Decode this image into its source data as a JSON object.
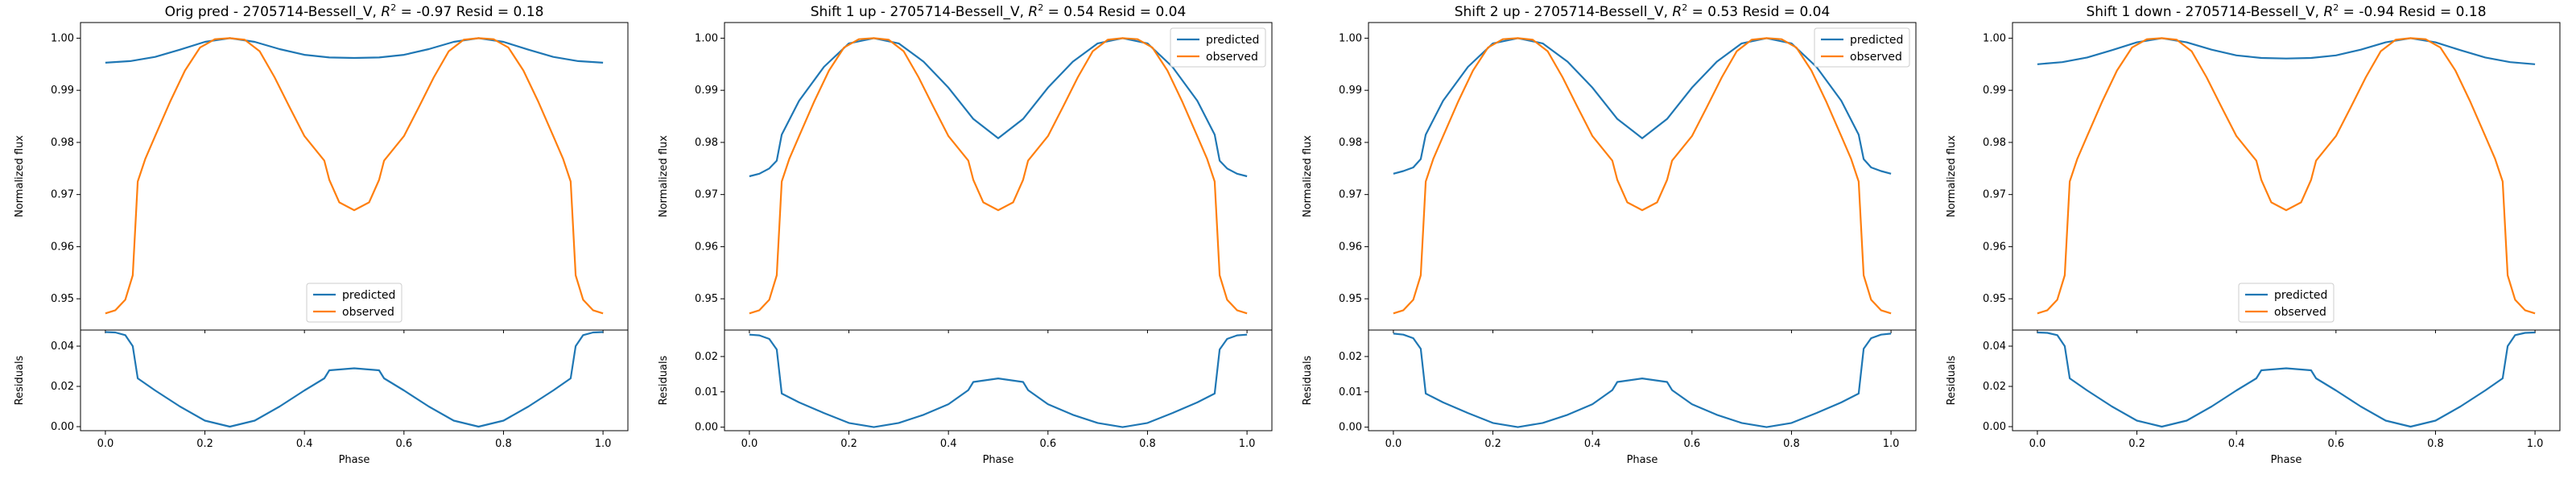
{
  "chart_data": [
    {
      "type": "line",
      "title": "Orig pred - 2705714-Bessell_V, $R^2$ = -0.97 Resid = 0.18",
      "title_parts": {
        "prefix": "Orig pred - 2705714-Bessell_V, ",
        "r2_symbol": "R",
        "r2_exp": "2",
        "suffix": " = -0.97 Resid = 0.18"
      },
      "xlabel": "Phase",
      "ylabel": "Normalized flux",
      "resid_ylabel": "Residuals",
      "xlim": [
        -0.05,
        1.05
      ],
      "ylim": [
        0.944,
        1.003
      ],
      "resid_ylim": [
        -0.002,
        0.048
      ],
      "xticks": [
        "0.0",
        "0.2",
        "0.4",
        "0.6",
        "0.8",
        "1.0"
      ],
      "yticks": [
        "0.95",
        "0.96",
        "0.97",
        "0.98",
        "0.99",
        "1.00"
      ],
      "resid_yticks": [
        "0.00",
        "0.02",
        "0.04"
      ],
      "legend": {
        "placement": "lower-center",
        "entries": [
          "predicted",
          "observed"
        ]
      },
      "series": [
        {
          "name": "predicted",
          "color": "#1f77b4",
          "x": [
            0,
            0.05,
            0.1,
            0.15,
            0.2,
            0.25,
            0.3,
            0.35,
            0.4,
            0.45,
            0.5,
            0.55,
            0.6,
            0.65,
            0.7,
            0.75,
            0.8,
            0.85,
            0.9,
            0.95,
            1.0
          ],
          "y": [
            0.9953,
            0.9956,
            0.9964,
            0.9978,
            0.9993,
            1.0,
            0.9993,
            0.9979,
            0.9968,
            0.9963,
            0.9962,
            0.9963,
            0.9968,
            0.9979,
            0.9993,
            1.0,
            0.9993,
            0.9978,
            0.9964,
            0.9956,
            0.9953
          ]
        },
        {
          "name": "observed",
          "color": "#ff7f0e",
          "x": [
            0,
            0.02,
            0.04,
            0.055,
            0.065,
            0.08,
            0.1,
            0.13,
            0.16,
            0.19,
            0.22,
            0.25,
            0.28,
            0.31,
            0.34,
            0.37,
            0.4,
            0.44,
            0.45,
            0.47,
            0.5,
            0.53,
            0.55,
            0.56,
            0.6,
            0.63,
            0.66,
            0.69,
            0.72,
            0.75,
            0.78,
            0.81,
            0.84,
            0.87,
            0.9,
            0.92,
            0.935,
            0.945,
            0.96,
            0.98,
            1.0
          ],
          "y": [
            0.9472,
            0.9478,
            0.9498,
            0.9545,
            0.9725,
            0.9768,
            0.9812,
            0.9878,
            0.9938,
            0.9982,
            0.9998,
            1.0,
            0.9997,
            0.9975,
            0.9925,
            0.9868,
            0.9812,
            0.9765,
            0.9728,
            0.9685,
            0.967,
            0.9685,
            0.9728,
            0.9765,
            0.9812,
            0.9868,
            0.9925,
            0.9975,
            0.9997,
            1.0,
            0.9998,
            0.9982,
            0.9938,
            0.9878,
            0.9812,
            0.9768,
            0.9725,
            0.9545,
            0.9498,
            0.9478,
            0.9472
          ]
        }
      ],
      "residuals": {
        "color": "#1f77b4",
        "x": [
          0,
          0.02,
          0.04,
          0.055,
          0.065,
          0.1,
          0.15,
          0.2,
          0.25,
          0.3,
          0.35,
          0.4,
          0.44,
          0.45,
          0.5,
          0.55,
          0.56,
          0.6,
          0.65,
          0.7,
          0.75,
          0.8,
          0.85,
          0.9,
          0.935,
          0.945,
          0.96,
          0.98,
          1.0
        ],
        "y": [
          0.047,
          0.0468,
          0.0455,
          0.04,
          0.024,
          0.018,
          0.01,
          0.003,
          0.0,
          0.003,
          0.01,
          0.018,
          0.024,
          0.028,
          0.029,
          0.028,
          0.024,
          0.018,
          0.01,
          0.003,
          0.0,
          0.003,
          0.01,
          0.018,
          0.024,
          0.04,
          0.0455,
          0.0468,
          0.047
        ]
      }
    },
    {
      "type": "line",
      "title": "Shift 1 up - 2705714-Bessell_V, $R^2$ = 0.54 Resid = 0.04",
      "title_parts": {
        "prefix": "Shift 1 up - 2705714-Bessell_V, ",
        "r2_symbol": "R",
        "r2_exp": "2",
        "suffix": " = 0.54 Resid = 0.04"
      },
      "xlabel": "Phase",
      "ylabel": "Normalized flux",
      "resid_ylabel": "Residuals",
      "xlim": [
        -0.05,
        1.05
      ],
      "ylim": [
        0.944,
        1.003
      ],
      "resid_ylim": [
        -0.001,
        0.0275
      ],
      "xticks": [
        "0.0",
        "0.2",
        "0.4",
        "0.6",
        "0.8",
        "1.0"
      ],
      "yticks": [
        "0.95",
        "0.96",
        "0.97",
        "0.98",
        "0.99",
        "1.00"
      ],
      "resid_yticks": [
        "0.00",
        "0.01",
        "0.02"
      ],
      "legend": {
        "placement": "upper-right",
        "entries": [
          "predicted",
          "observed"
        ]
      },
      "series": [
        {
          "name": "predicted",
          "color": "#1f77b4",
          "x": [
            0,
            0.02,
            0.04,
            0.055,
            0.065,
            0.1,
            0.15,
            0.2,
            0.25,
            0.3,
            0.35,
            0.4,
            0.45,
            0.5,
            0.55,
            0.6,
            0.65,
            0.7,
            0.75,
            0.8,
            0.85,
            0.9,
            0.935,
            0.945,
            0.96,
            0.98,
            1.0
          ],
          "y": [
            0.9735,
            0.974,
            0.975,
            0.9765,
            0.9815,
            0.988,
            0.9945,
            0.999,
            1.0,
            0.999,
            0.9955,
            0.9905,
            0.9845,
            0.9808,
            0.9845,
            0.9905,
            0.9955,
            0.999,
            1.0,
            0.999,
            0.9945,
            0.988,
            0.9815,
            0.9765,
            0.975,
            0.974,
            0.9735
          ]
        },
        {
          "name": "observed",
          "color": "#ff7f0e",
          "x": [
            0,
            0.02,
            0.04,
            0.055,
            0.065,
            0.08,
            0.1,
            0.13,
            0.16,
            0.19,
            0.22,
            0.25,
            0.28,
            0.31,
            0.34,
            0.37,
            0.4,
            0.44,
            0.45,
            0.47,
            0.5,
            0.53,
            0.55,
            0.56,
            0.6,
            0.63,
            0.66,
            0.69,
            0.72,
            0.75,
            0.78,
            0.81,
            0.84,
            0.87,
            0.9,
            0.92,
            0.935,
            0.945,
            0.96,
            0.98,
            1.0
          ],
          "y": [
            0.9472,
            0.9478,
            0.9498,
            0.9545,
            0.9725,
            0.9768,
            0.9812,
            0.9878,
            0.9938,
            0.9982,
            0.9998,
            1.0,
            0.9997,
            0.9975,
            0.9925,
            0.9868,
            0.9812,
            0.9765,
            0.9728,
            0.9685,
            0.967,
            0.9685,
            0.9728,
            0.9765,
            0.9812,
            0.9868,
            0.9925,
            0.9975,
            0.9997,
            1.0,
            0.9998,
            0.9982,
            0.9938,
            0.9878,
            0.9812,
            0.9768,
            0.9725,
            0.9545,
            0.9498,
            0.9478,
            0.9472
          ]
        }
      ],
      "residuals": {
        "color": "#1f77b4",
        "x": [
          0,
          0.02,
          0.04,
          0.055,
          0.065,
          0.1,
          0.15,
          0.2,
          0.25,
          0.3,
          0.35,
          0.4,
          0.44,
          0.45,
          0.5,
          0.55,
          0.56,
          0.6,
          0.65,
          0.7,
          0.75,
          0.8,
          0.85,
          0.9,
          0.935,
          0.945,
          0.96,
          0.98,
          1.0
        ],
        "y": [
          0.0262,
          0.026,
          0.025,
          0.022,
          0.0095,
          0.007,
          0.004,
          0.0012,
          0.0,
          0.0012,
          0.0035,
          0.0065,
          0.0105,
          0.0128,
          0.0138,
          0.0128,
          0.0105,
          0.0065,
          0.0035,
          0.0012,
          0.0,
          0.0012,
          0.004,
          0.007,
          0.0095,
          0.022,
          0.025,
          0.026,
          0.0262
        ]
      }
    },
    {
      "type": "line",
      "title": "Shift 2 up - 2705714-Bessell_V, $R^2$ = 0.53 Resid = 0.04",
      "title_parts": {
        "prefix": "Shift 2 up - 2705714-Bessell_V, ",
        "r2_symbol": "R",
        "r2_exp": "2",
        "suffix": " = 0.53 Resid = 0.04"
      },
      "xlabel": "Phase",
      "ylabel": "Normalized flux",
      "resid_ylabel": "Residuals",
      "xlim": [
        -0.05,
        1.05
      ],
      "ylim": [
        0.944,
        1.003
      ],
      "resid_ylim": [
        -0.001,
        0.0275
      ],
      "xticks": [
        "0.0",
        "0.2",
        "0.4",
        "0.6",
        "0.8",
        "1.0"
      ],
      "yticks": [
        "0.95",
        "0.96",
        "0.97",
        "0.98",
        "0.99",
        "1.00"
      ],
      "resid_yticks": [
        "0.00",
        "0.01",
        "0.02"
      ],
      "legend": {
        "placement": "upper-right",
        "entries": [
          "predicted",
          "observed"
        ]
      },
      "series": [
        {
          "name": "predicted",
          "color": "#1f77b4",
          "x": [
            0,
            0.02,
            0.04,
            0.055,
            0.065,
            0.1,
            0.15,
            0.2,
            0.25,
            0.3,
            0.35,
            0.4,
            0.45,
            0.5,
            0.55,
            0.6,
            0.65,
            0.7,
            0.75,
            0.8,
            0.85,
            0.9,
            0.935,
            0.945,
            0.96,
            0.98,
            1.0
          ],
          "y": [
            0.974,
            0.9745,
            0.9752,
            0.9768,
            0.9815,
            0.988,
            0.9945,
            0.999,
            1.0,
            0.999,
            0.9955,
            0.9905,
            0.9845,
            0.9808,
            0.9845,
            0.9905,
            0.9955,
            0.999,
            1.0,
            0.999,
            0.9945,
            0.988,
            0.9815,
            0.9768,
            0.9752,
            0.9745,
            0.974
          ]
        },
        {
          "name": "observed",
          "color": "#ff7f0e",
          "x": [
            0,
            0.02,
            0.04,
            0.055,
            0.065,
            0.08,
            0.1,
            0.13,
            0.16,
            0.19,
            0.22,
            0.25,
            0.28,
            0.31,
            0.34,
            0.37,
            0.4,
            0.44,
            0.45,
            0.47,
            0.5,
            0.53,
            0.55,
            0.56,
            0.6,
            0.63,
            0.66,
            0.69,
            0.72,
            0.75,
            0.78,
            0.81,
            0.84,
            0.87,
            0.9,
            0.92,
            0.935,
            0.945,
            0.96,
            0.98,
            1.0
          ],
          "y": [
            0.9472,
            0.9478,
            0.9498,
            0.9545,
            0.9725,
            0.9768,
            0.9812,
            0.9878,
            0.9938,
            0.9982,
            0.9998,
            1.0,
            0.9997,
            0.9975,
            0.9925,
            0.9868,
            0.9812,
            0.9765,
            0.9728,
            0.9685,
            0.967,
            0.9685,
            0.9728,
            0.9765,
            0.9812,
            0.9868,
            0.9925,
            0.9975,
            0.9997,
            1.0,
            0.9998,
            0.9982,
            0.9938,
            0.9878,
            0.9812,
            0.9768,
            0.9725,
            0.9545,
            0.9498,
            0.9478,
            0.9472
          ]
        }
      ],
      "residuals": {
        "color": "#1f77b4",
        "x": [
          0,
          0.02,
          0.04,
          0.055,
          0.065,
          0.1,
          0.15,
          0.2,
          0.25,
          0.3,
          0.35,
          0.4,
          0.44,
          0.45,
          0.5,
          0.55,
          0.56,
          0.6,
          0.65,
          0.7,
          0.75,
          0.8,
          0.85,
          0.9,
          0.935,
          0.945,
          0.96,
          0.98,
          1.0
        ],
        "y": [
          0.0265,
          0.0262,
          0.0252,
          0.0222,
          0.0095,
          0.007,
          0.004,
          0.0012,
          0.0,
          0.0012,
          0.0035,
          0.0065,
          0.0105,
          0.0128,
          0.0138,
          0.0128,
          0.0105,
          0.0065,
          0.0035,
          0.0012,
          0.0,
          0.0012,
          0.004,
          0.007,
          0.0095,
          0.0222,
          0.0252,
          0.0262,
          0.0265
        ]
      }
    },
    {
      "type": "line",
      "title": "Shift 1 down - 2705714-Bessell_V, $R^2$ = -0.94 Resid = 0.18",
      "title_parts": {
        "prefix": "Shift 1 down - 2705714-Bessell_V, ",
        "r2_symbol": "R",
        "r2_exp": "2",
        "suffix": " = -0.94 Resid = 0.18"
      },
      "xlabel": "Phase",
      "ylabel": "Normalized flux",
      "resid_ylabel": "Residuals",
      "xlim": [
        -0.05,
        1.05
      ],
      "ylim": [
        0.944,
        1.003
      ],
      "resid_ylim": [
        -0.002,
        0.048
      ],
      "xticks": [
        "0.0",
        "0.2",
        "0.4",
        "0.6",
        "0.8",
        "1.0"
      ],
      "yticks": [
        "0.95",
        "0.96",
        "0.97",
        "0.98",
        "0.99",
        "1.00"
      ],
      "resid_yticks": [
        "0.00",
        "0.02",
        "0.04"
      ],
      "legend": {
        "placement": "lower-center",
        "entries": [
          "predicted",
          "observed"
        ]
      },
      "series": [
        {
          "name": "predicted",
          "color": "#1f77b4",
          "x": [
            0,
            0.05,
            0.1,
            0.15,
            0.2,
            0.25,
            0.3,
            0.35,
            0.4,
            0.45,
            0.5,
            0.55,
            0.6,
            0.65,
            0.7,
            0.75,
            0.8,
            0.85,
            0.9,
            0.95,
            1.0
          ],
          "y": [
            0.995,
            0.9954,
            0.9963,
            0.9977,
            0.9992,
            1.0,
            0.9992,
            0.9978,
            0.9967,
            0.9962,
            0.9961,
            0.9962,
            0.9967,
            0.9978,
            0.9992,
            1.0,
            0.9992,
            0.9977,
            0.9963,
            0.9954,
            0.995
          ]
        },
        {
          "name": "observed",
          "color": "#ff7f0e",
          "x": [
            0,
            0.02,
            0.04,
            0.055,
            0.065,
            0.08,
            0.1,
            0.13,
            0.16,
            0.19,
            0.22,
            0.25,
            0.28,
            0.31,
            0.34,
            0.37,
            0.4,
            0.44,
            0.45,
            0.47,
            0.5,
            0.53,
            0.55,
            0.56,
            0.6,
            0.63,
            0.66,
            0.69,
            0.72,
            0.75,
            0.78,
            0.81,
            0.84,
            0.87,
            0.9,
            0.92,
            0.935,
            0.945,
            0.96,
            0.98,
            1.0
          ],
          "y": [
            0.9472,
            0.9478,
            0.9498,
            0.9545,
            0.9725,
            0.9768,
            0.9812,
            0.9878,
            0.9938,
            0.9982,
            0.9998,
            1.0,
            0.9997,
            0.9975,
            0.9925,
            0.9868,
            0.9812,
            0.9765,
            0.9728,
            0.9685,
            0.967,
            0.9685,
            0.9728,
            0.9765,
            0.9812,
            0.9868,
            0.9925,
            0.9975,
            0.9997,
            1.0,
            0.9998,
            0.9982,
            0.9938,
            0.9878,
            0.9812,
            0.9768,
            0.9725,
            0.9545,
            0.9498,
            0.9478,
            0.9472
          ]
        }
      ],
      "residuals": {
        "color": "#1f77b4",
        "x": [
          0,
          0.02,
          0.04,
          0.055,
          0.065,
          0.1,
          0.15,
          0.2,
          0.25,
          0.3,
          0.35,
          0.4,
          0.44,
          0.45,
          0.5,
          0.55,
          0.56,
          0.6,
          0.65,
          0.7,
          0.75,
          0.8,
          0.85,
          0.9,
          0.935,
          0.945,
          0.96,
          0.98,
          1.0
        ],
        "y": [
          0.0468,
          0.0466,
          0.0455,
          0.04,
          0.024,
          0.018,
          0.01,
          0.003,
          0.0,
          0.003,
          0.01,
          0.018,
          0.024,
          0.028,
          0.029,
          0.028,
          0.024,
          0.018,
          0.01,
          0.003,
          0.0,
          0.003,
          0.01,
          0.018,
          0.024,
          0.04,
          0.0455,
          0.0466,
          0.0468
        ]
      }
    }
  ]
}
